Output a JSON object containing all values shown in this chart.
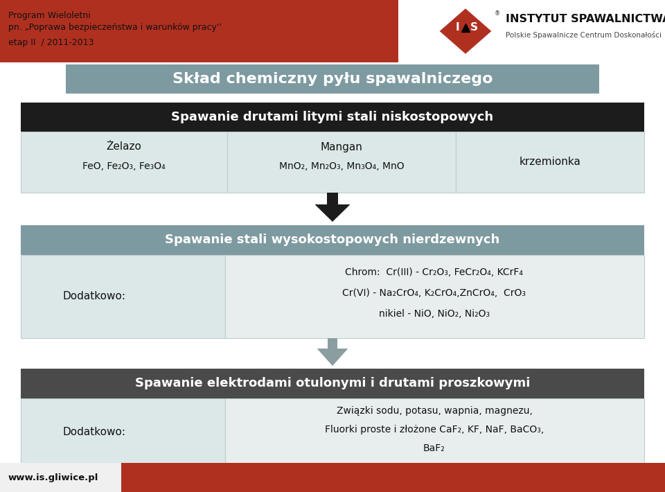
{
  "bg_color": "#ffffff",
  "red_color": "#b03020",
  "gray_header_color": "#7d9aa0",
  "dark_gray_section": "#4a4a4a",
  "black_section_color": "#1c1c1c",
  "light_gray_cell": "#dce8e8",
  "lighter_gray": "#e8eeee",
  "arrow_black": "#1c1c1c",
  "arrow_gray": "#8a9ea0",
  "footer_red": "#b03020",
  "header_line1": "Program Wieloletni",
  "header_line2": "pn. „Poprawa bezpieczeństwa i warunków pracy''",
  "header_line3": "etap II  / 2011-2013",
  "title_main": "Skład chemiczny pyłu spawalniczego",
  "section1_title": "Spawanie drutami litymi stali niskostopowych",
  "cell1_title": "Żelazo",
  "cell1_content": "FeO, Fe₂O₃, Fe₃O₄",
  "cell2_title": "Mangan",
  "cell2_content": "MnO₂, Mn₂O₃, Mn₃O₄, MnO",
  "cell3_content": "krzemionka",
  "section2_title": "Spawanie stali wysokostopowych nierdzewnych",
  "add_label": "Dodatkowo:",
  "chrom_line1": "Chrom:  Cr(III) - Cr₂O₃, FeCr₂O₄, KCrF₄",
  "chrom_line2": "Cr(VI) - Na₂CrO₄, K₂CrO₄,ZnCrO₄,  CrO₃",
  "chrom_line3": "nikiel - NiO, NiO₂, Ni₂O₃",
  "section3_title": "Spawanie elektrodami otulonymi i drutami proszkowymi",
  "add_label2": "Dodatkowo:",
  "bottom_line1": "Związki sodu, potasu, wapnia, magnezu,",
  "bottom_line2": "Fluorki proste i złożone CaF₂, KF, NaF, BaCO₃,",
  "bottom_line3": "BaF₂",
  "inst_name": "INSTYTUT SPAWALNICTWA",
  "inst_sub": "Polskie Spawalnicze Centrum Doskonałości",
  "website": "www.is.gliwice.pl"
}
